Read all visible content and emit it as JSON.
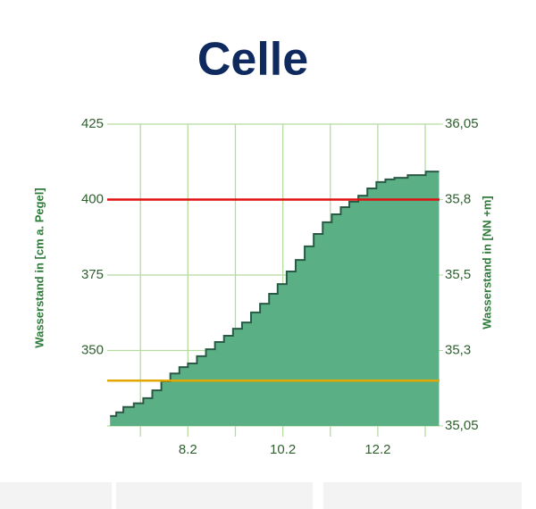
{
  "chart_data": {
    "type": "step-area",
    "title": "Celle",
    "y_label": "Wasserstand in [cm a. Pegel]",
    "y2_label": "Wasserstand in [NN +m]",
    "xlim": [
      6.5,
      13.5
    ],
    "xticks": [
      8.2,
      10.2,
      12.2
    ],
    "x_minor_ticks": [
      7.2,
      9.2,
      11.2,
      13.2
    ],
    "ylim": [
      325,
      425
    ],
    "yticks": [
      350,
      375,
      400,
      425
    ],
    "y_grid": [
      325
    ],
    "y2lim": [
      35.05,
      36.05
    ],
    "y2ticks": [
      {
        "value": 36.05,
        "label": "36,05"
      },
      {
        "value": 35.8,
        "label": "35,8"
      },
      {
        "value": 35.55,
        "label": "35,5"
      },
      {
        "value": 35.3,
        "label": "35,3"
      },
      {
        "value": 35.05,
        "label": "35,05"
      }
    ],
    "grid": true,
    "grid_color": "#b5dca0",
    "thresholds": [
      {
        "value": 400,
        "color": "#e01010"
      },
      {
        "value": 340,
        "color": "#e0a800"
      }
    ],
    "series": [
      {
        "color": "#5aaf85",
        "line_color": "#2a5a45",
        "x": [
          6.56,
          6.69,
          6.84,
          7.06,
          7.26,
          7.45,
          7.64,
          7.83,
          8.02,
          8.2,
          8.39,
          8.58,
          8.77,
          8.96,
          9.15,
          9.34,
          9.53,
          9.72,
          9.91,
          10.09,
          10.28,
          10.47,
          10.66,
          10.85,
          11.04,
          11.23,
          11.42,
          11.6,
          11.79,
          11.98,
          12.17,
          12.36,
          12.55,
          12.83,
          13.21,
          13.49
        ],
        "values": [
          328.3,
          329.5,
          331.3,
          332.5,
          334.2,
          336.8,
          339.8,
          342.4,
          344.5,
          345.7,
          348.1,
          350.4,
          352.8,
          354.9,
          357.2,
          359.3,
          362.6,
          365.5,
          368.8,
          372,
          376.2,
          380,
          384.5,
          388.6,
          392.5,
          395.1,
          397.5,
          399.3,
          401.3,
          403.7,
          405.8,
          406.7,
          407.2,
          408.1,
          409.3,
          409.3
        ]
      }
    ]
  }
}
